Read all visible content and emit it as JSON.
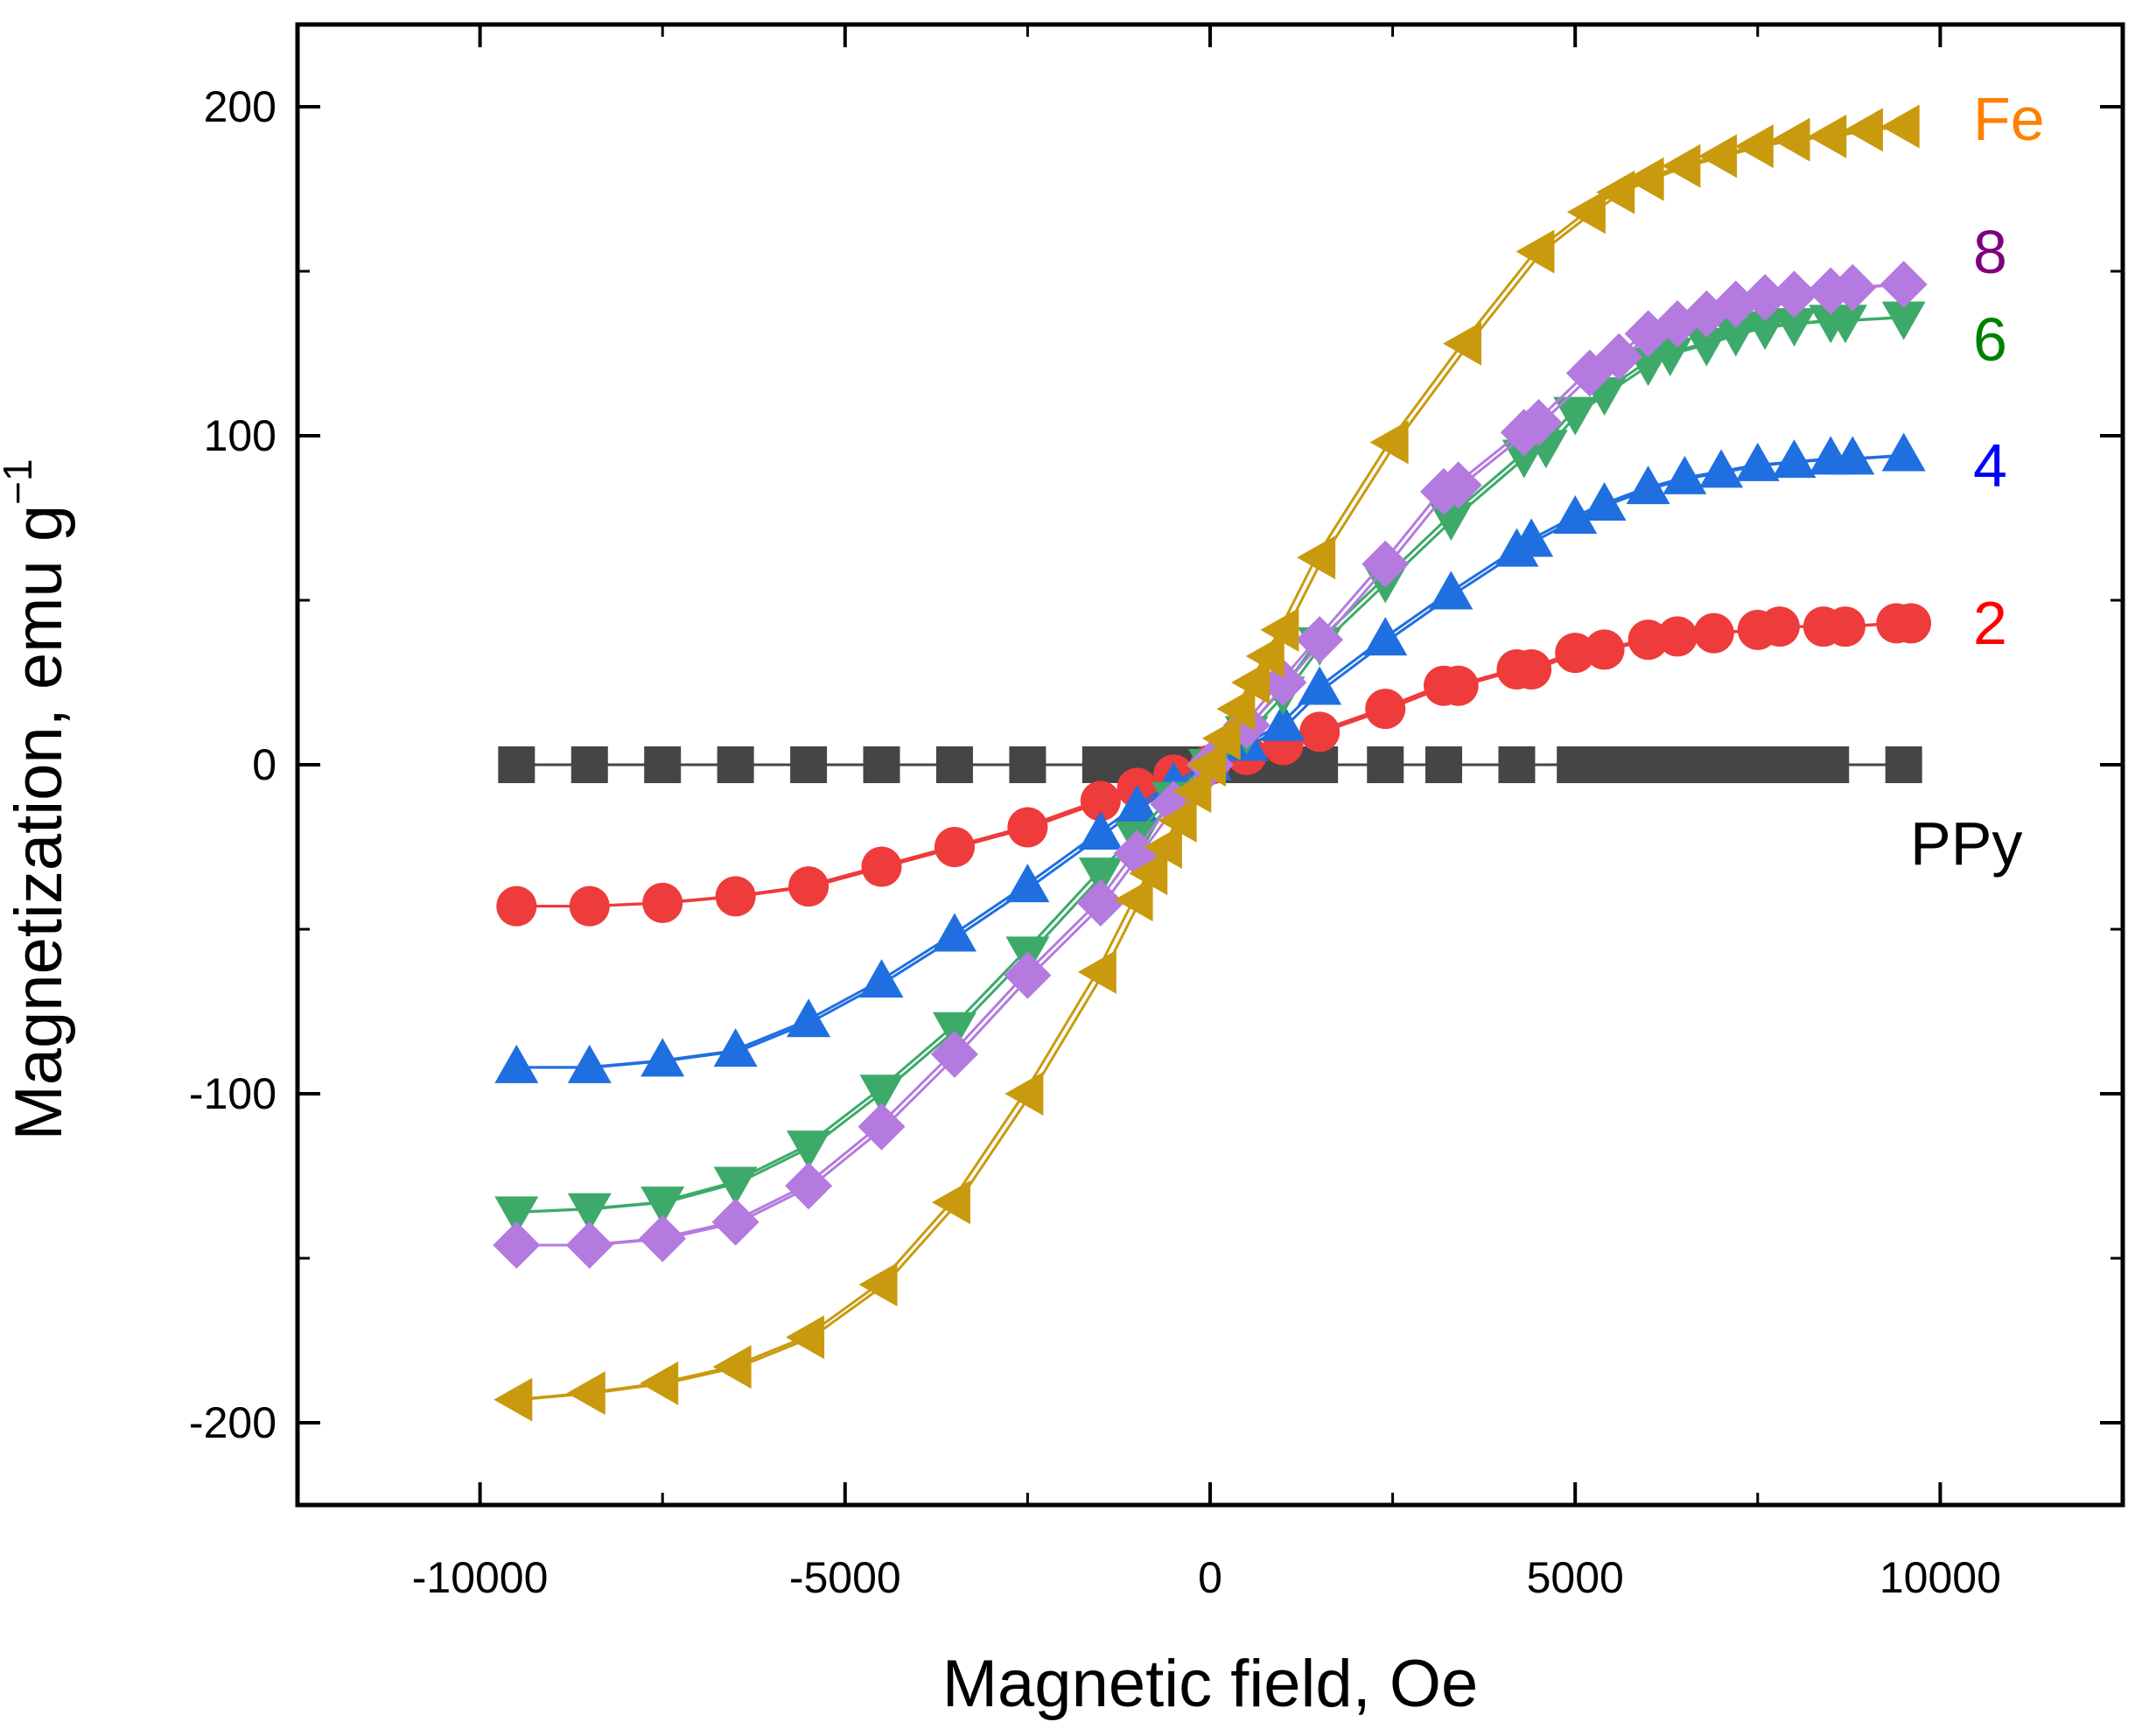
{
  "chart_data": {
    "type": "line",
    "title": "",
    "xlabel": "Magnetic field, Oe",
    "ylabel_main": "Magnetization, emu g",
    "ylabel_sup": "−1",
    "xlim": [
      -12500,
      12500
    ],
    "ylim": [
      -225,
      225
    ],
    "xticks": [
      -10000,
      -5000,
      0,
      5000,
      10000
    ],
    "xtick_labels": [
      "-10000",
      "-5000",
      "0",
      "5000",
      "10000"
    ],
    "yticks": [
      -200,
      -100,
      0,
      100,
      200
    ],
    "ytick_labels": [
      "-200",
      "-100",
      "0",
      "100",
      "200"
    ],
    "grid": false,
    "legend": "none",
    "series": [
      {
        "name": "PPy",
        "color": "#454545",
        "label_color": "#000000",
        "marker": "square",
        "x": [
          -9500,
          -8500,
          -7500,
          -6500,
          -5500,
          -4500,
          -3500,
          -2500,
          -1500,
          -1000,
          -500,
          0,
          500,
          1000,
          1500,
          2400,
          3200,
          4200,
          5000,
          5500,
          6000,
          6500,
          7000,
          7500,
          8000,
          8500,
          9500
        ],
        "y": [
          0,
          0,
          0,
          0,
          0,
          0,
          0,
          0,
          0,
          0,
          0,
          0,
          0,
          0,
          0,
          0,
          0,
          0,
          0,
          0,
          0,
          0,
          0,
          0,
          0,
          0,
          0
        ]
      },
      {
        "name": "2",
        "color": "#ee3b3b",
        "label_color": "#ff0000",
        "marker": "circle",
        "x": [
          -9500,
          -8500,
          -7500,
          -6500,
          -5500,
          -4500,
          -3500,
          -2500,
          -1500,
          -1000,
          -500,
          0,
          500,
          1000,
          1500,
          2400,
          3200,
          3400,
          4200,
          4400,
          5000,
          5400,
          6000,
          6400,
          6900,
          7500,
          7800,
          8400,
          8700,
          9400,
          9600
        ],
        "y": [
          -43,
          -43,
          -42,
          -40,
          -37,
          -31,
          -25,
          -19,
          -11,
          -7,
          -3,
          0,
          3,
          6,
          10,
          17,
          24,
          24,
          29,
          29,
          34,
          35,
          38,
          39,
          40,
          41,
          42,
          42,
          42,
          43,
          43
        ]
      },
      {
        "name": "4",
        "color": "#1f6fe0",
        "label_color": "#0000ff",
        "marker": "triangle-up",
        "x": [
          -9500,
          -8500,
          -7500,
          -6500,
          -5500,
          -4500,
          -3500,
          -2500,
          -1500,
          -1000,
          -500,
          0,
          500,
          1000,
          1500,
          2400,
          3300,
          4200,
          4400,
          5000,
          5400,
          6000,
          6500,
          7000,
          7500,
          8000,
          8500,
          8800,
          9500
        ],
        "y": [
          -92,
          -92,
          -90,
          -87,
          -78,
          -66,
          -52,
          -37,
          -21,
          -13,
          -6,
          0,
          6,
          12,
          23,
          38,
          52,
          65,
          68,
          75,
          79,
          84,
          87,
          89,
          91,
          92,
          93,
          93,
          94
        ]
      },
      {
        "name": "6",
        "color": "#3daa6a",
        "label_color": "#008000",
        "marker": "triangle-down",
        "x": [
          -9500,
          -8500,
          -7500,
          -6500,
          -5500,
          -4500,
          -3500,
          -2500,
          -1500,
          -1000,
          -500,
          0,
          500,
          1000,
          1500,
          2400,
          3300,
          4300,
          4600,
          5000,
          5400,
          6000,
          6300,
          6800,
          7200,
          7600,
          8000,
          8500,
          8700,
          9500
        ],
        "y": [
          -136,
          -135,
          -133,
          -127,
          -116,
          -99,
          -80,
          -57,
          -33,
          -22,
          -10,
          0,
          10,
          22,
          37,
          56,
          75,
          94,
          97,
          107,
          113,
          122,
          125,
          128,
          131,
          133,
          134,
          135,
          135,
          136
        ]
      },
      {
        "name": "8",
        "color": "#b47ae0",
        "label_color": "#7f007f",
        "marker": "diamond",
        "x": [
          -9500,
          -8500,
          -7500,
          -6500,
          -5500,
          -4500,
          -3500,
          -2500,
          -1500,
          -1000,
          -500,
          0,
          500,
          1000,
          1500,
          2400,
          3200,
          3400,
          4300,
          4500,
          5200,
          5600,
          6000,
          6400,
          6800,
          7200,
          7600,
          8000,
          8500,
          8800,
          9500
        ],
        "y": [
          -146,
          -146,
          -144,
          -139,
          -128,
          -110,
          -88,
          -64,
          -42,
          -27,
          -12,
          0,
          12,
          25,
          38,
          61,
          83,
          85,
          101,
          104,
          119,
          124,
          131,
          134,
          137,
          140,
          142,
          143,
          144,
          145,
          146
        ]
      },
      {
        "name": "Fe",
        "color": "#c99a0e",
        "label_color": "#ff8000",
        "marker": "triangle-left",
        "x": [
          -9500,
          -8500,
          -7500,
          -6500,
          -5500,
          -4500,
          -3500,
          -2500,
          -1500,
          -1000,
          -800,
          -600,
          -400,
          -200,
          0,
          200,
          400,
          600,
          800,
          1000,
          1500,
          2500,
          3500,
          4500,
          5200,
          5600,
          6000,
          6500,
          7000,
          7500,
          8000,
          8500,
          9000,
          9500
        ],
        "y": [
          -193,
          -191,
          -188,
          -183,
          -174,
          -158,
          -133,
          -100,
          -63,
          -41,
          -33,
          -25,
          -17,
          -8,
          0,
          8,
          17,
          25,
          33,
          41,
          63,
          98,
          128,
          156,
          168,
          174,
          178,
          182,
          185,
          188,
          190,
          191,
          193,
          194
        ]
      }
    ]
  }
}
